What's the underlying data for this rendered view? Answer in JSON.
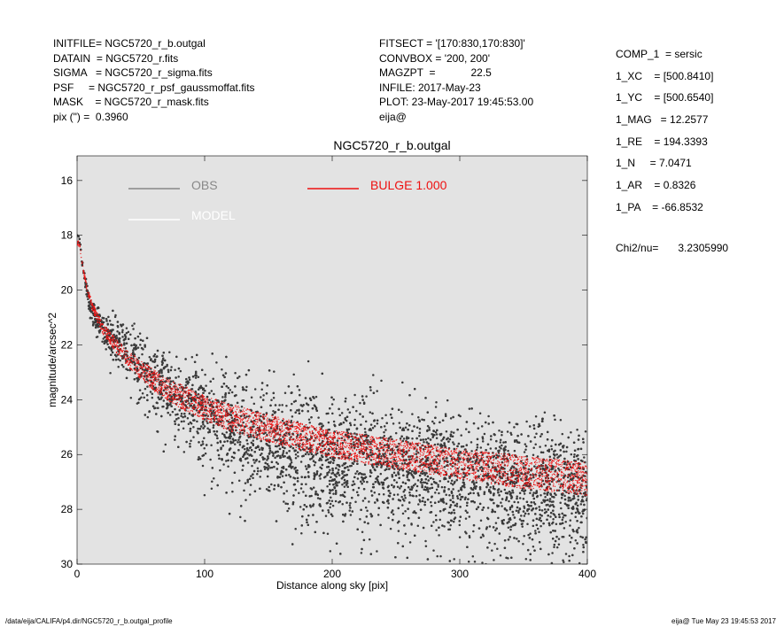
{
  "header_left": [
    "INITFILE= NGC5720_r_b.outgal",
    "DATAIN  = NGC5720_r.fits",
    "SIGMA   = NGC5720_r_sigma.fits",
    "PSF     = NGC5720_r_psf_gaussmoffat.fits",
    "MASK    = NGC5720_r_mask.fits",
    "pix (\") =  0.3960"
  ],
  "header_mid": [
    "FITSECT = '[170:830,170:830]'",
    "CONVBOX = '200, 200'",
    "MAGZPT  =            22.5",
    "INFILE: 2017-May-23",
    "PLOT: 23-May-2017 19:45:53.00",
    "eija@"
  ],
  "header_right": [
    "COMP_1  = sersic",
    "1_XC    = [500.8410]",
    "1_YC    = [500.6540]",
    "1_MAG   = 12.2577",
    "1_RE    = 194.3393",
    "1_N     = 7.0471",
    "1_AR    = 0.8326",
    "1_PA    = -66.8532"
  ],
  "chi2": {
    "label": "Chi2/nu=",
    "value": "3.2305990"
  },
  "footer": {
    "left": "/data/eija/CALIFA/p4.dir/NGC5720_r_b.outgal_profile",
    "right": "eija@  Tue May 23 19:45:53 2017"
  },
  "colors": {
    "plot_bg": "#e3e3e3",
    "obs": "#3a3a3a",
    "bulge": "#ee1111",
    "model": "#ffffff",
    "obs_legend": "#888888"
  },
  "chart_data": {
    "type": "scatter",
    "title": "NGC5720_r_b.outgal",
    "xlabel": "Distance along sky [pix]",
    "ylabel": "magnitude/arcsec^2",
    "xlim": [
      0,
      400
    ],
    "ylim": [
      30,
      15.1
    ],
    "y_inverted": true,
    "xticks": [
      0,
      100,
      200,
      300,
      400
    ],
    "yticks": [
      16,
      18,
      20,
      22,
      24,
      26,
      28,
      30
    ],
    "grid": false,
    "legend": [
      {
        "label": "OBS",
        "color": "#888888"
      },
      {
        "label": "BULGE  1.000",
        "color": "#ee1111"
      },
      {
        "label": "MODEL",
        "color": "#ffffff"
      }
    ],
    "series": [
      {
        "name": "OBS",
        "style": "points",
        "x": [
          2,
          5,
          8,
          12,
          20,
          30,
          40,
          50,
          60,
          70,
          80,
          100,
          120,
          150,
          180,
          200,
          250,
          300,
          350,
          400
        ],
        "y": [
          18.2,
          19.3,
          20.0,
          20.8,
          21.3,
          21.7,
          22.1,
          22.6,
          23.1,
          23.5,
          23.8,
          24.3,
          24.7,
          25.2,
          25.6,
          25.8,
          26.2,
          26.5,
          26.8,
          27.0
        ],
        "scatter": [
          0.1,
          0.1,
          0.15,
          0.2,
          0.3,
          0.45,
          0.6,
          0.7,
          0.75,
          0.8,
          0.85,
          0.9,
          1.0,
          1.1,
          1.2,
          1.2,
          1.25,
          1.3,
          1.3,
          1.3
        ]
      },
      {
        "name": "BULGE  1.000",
        "style": "band",
        "x": [
          2,
          5,
          8,
          12,
          20,
          30,
          40,
          50,
          60,
          70,
          80,
          100,
          120,
          150,
          180,
          200,
          250,
          300,
          350,
          400
        ],
        "y": [
          18.3,
          19.3,
          20.0,
          20.6,
          21.4,
          22.0,
          22.5,
          22.9,
          23.3,
          23.6,
          23.85,
          24.3,
          24.65,
          25.05,
          25.4,
          25.6,
          26.0,
          26.35,
          26.65,
          26.9
        ],
        "width": [
          0.1,
          0.1,
          0.12,
          0.15,
          0.2,
          0.25,
          0.3,
          0.35,
          0.4,
          0.4,
          0.45,
          0.45,
          0.5,
          0.5,
          0.5,
          0.5,
          0.55,
          0.55,
          0.6,
          0.6
        ]
      }
    ]
  }
}
